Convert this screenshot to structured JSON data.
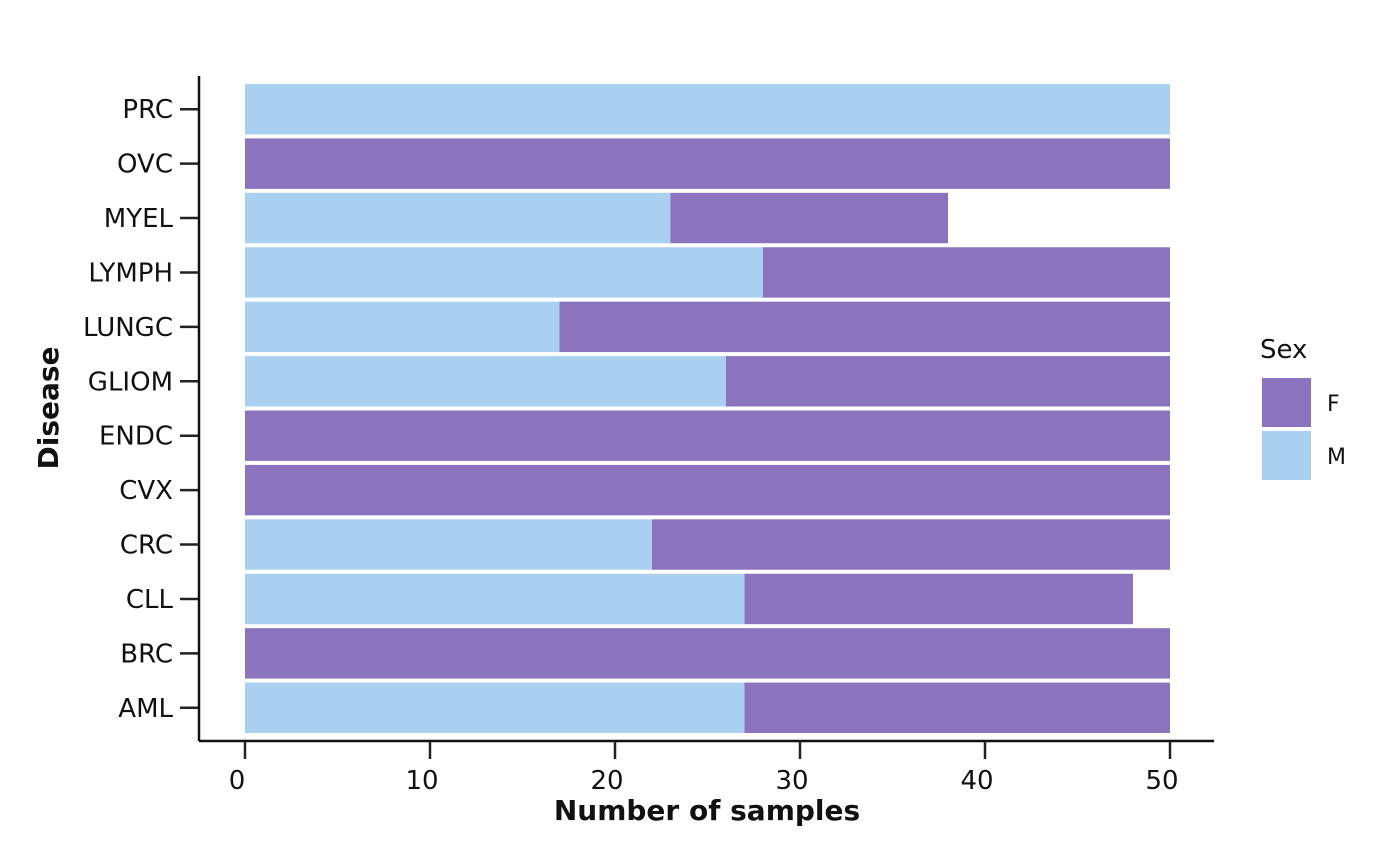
{
  "chart_data": {
    "type": "bar",
    "orientation": "horizontal",
    "stacked": true,
    "title": "",
    "xlabel": "Number of samples",
    "ylabel": "Disease",
    "xlim": [
      0,
      50
    ],
    "xticks": [
      0,
      10,
      20,
      30,
      40,
      50
    ],
    "categories": [
      "AML",
      "BRC",
      "CLL",
      "CRC",
      "CVX",
      "ENDC",
      "GLIOM",
      "LUNGC",
      "LYMPH",
      "MYEL",
      "OVC",
      "PRC"
    ],
    "series": [
      {
        "name": "M",
        "color": "#aad0f0",
        "values": [
          27,
          0,
          27,
          22,
          0,
          0,
          26,
          17,
          28,
          23,
          0,
          50
        ]
      },
      {
        "name": "F",
        "color": "#8b73be",
        "values": [
          23,
          50,
          21,
          28,
          50,
          50,
          24,
          33,
          22,
          15,
          50,
          0
        ]
      }
    ],
    "legend": {
      "title": "Sex",
      "placement": "right",
      "entries": [
        {
          "label": "F",
          "color": "#8b73be"
        },
        {
          "label": "M",
          "color": "#aad0f0"
        }
      ]
    },
    "grid": false
  }
}
